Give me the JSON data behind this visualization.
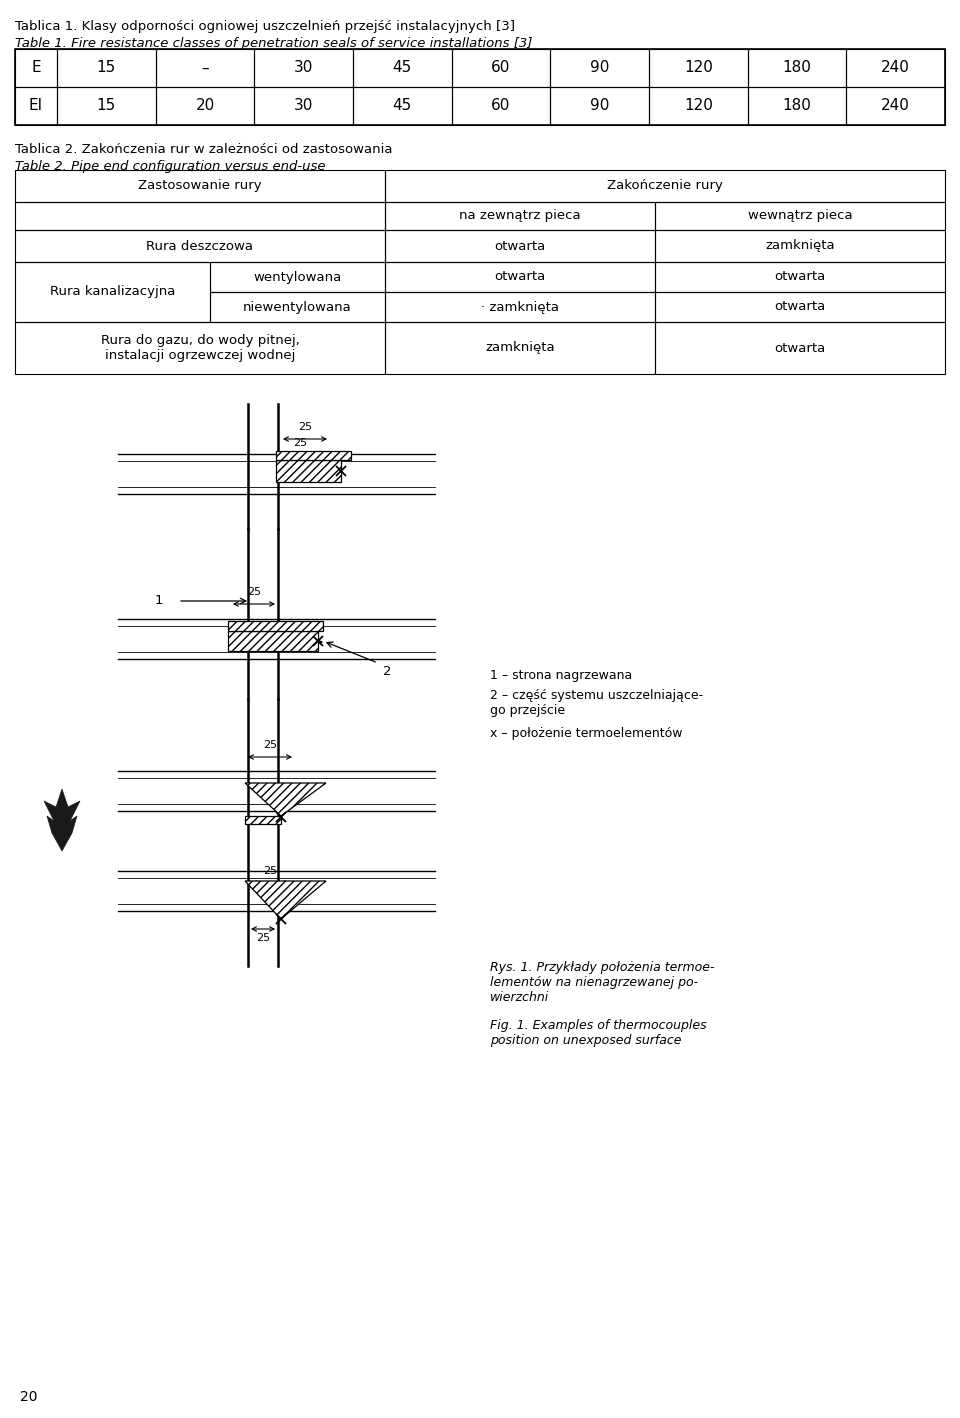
{
  "title1_pl": "Tablica 1. Klasy odporności ogniowej uszczelnień przejść instalacyjnych [3]",
  "title1_en": "Table 1. Fire resistance classes of penetration seals of service installations [3]",
  "table1_rows": [
    {
      "label": "E",
      "values": [
        "15",
        "–",
        "30",
        "45",
        "60",
        "90",
        "120",
        "180",
        "240"
      ]
    },
    {
      "label": "EI",
      "values": [
        "15",
        "20",
        "30",
        "45",
        "60",
        "90",
        "120",
        "180",
        "240"
      ]
    }
  ],
  "title2_pl": "Tablica 2. Zakończenia rur w zależności od zastosowania",
  "title2_en": "Table 2. Pipe end configuration versus end-use",
  "table2_header_col1": "Zastosowanie rury",
  "table2_header_col2": "Zakończenie rury",
  "table2_subheader_col2a": "na zewnątrz pieca",
  "table2_subheader_col2b": "wewnątrz pieca",
  "legend1": "1 – strona nagrzewana",
  "legend2": "2 – część systemu uszczelniające-\ngo przejście",
  "legend3": "x – położenie termoelementów",
  "caption_pl": "Rys. 1. Przykłady położenia termoe-\nlementów na nienagrzewanej po-\nwierzchni",
  "caption_en": "Fig. 1. Examples of thermocouples\nposition on unexposed surface",
  "page_number": "20",
  "bg_color": "#ffffff"
}
